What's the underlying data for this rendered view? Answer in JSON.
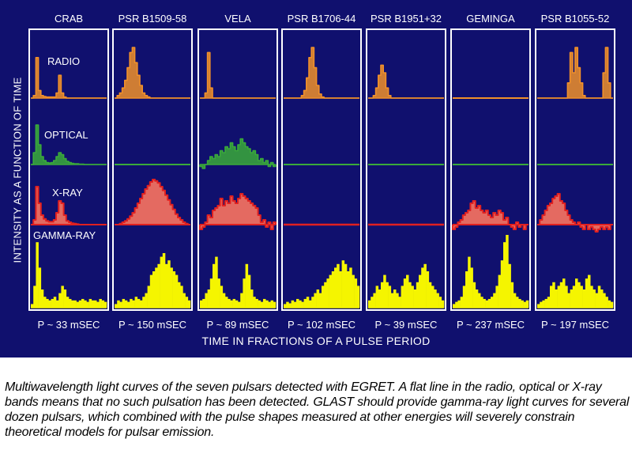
{
  "figure": {
    "ylabel": "INTENSITY AS A FUNCTION OF TIME",
    "xlabel": "TIME IN FRACTIONS OF A PULSE PERIOD",
    "band_labels": [
      "RADIO",
      "OPTICAL",
      "X-RAY",
      "GAMMA-RAY"
    ],
    "caption": "Multiwavelength light curves of the seven pulsars detected with EGRET.  A flat line in the radio, optical or X-ray bands means that no such pulsation has been detected.  GLAST should provide gamma-ray light curves for several dozen pulsars, which combined with the pulse shapes measured at other energies will severely constrain theoretical models for pulsar emission."
  },
  "colors": {
    "background": "#10106e",
    "radio": "#f0902a",
    "optical": "#3aaa3a",
    "xray_line": "#e02020",
    "xray_fill": "#f07060",
    "gamma": "#f5f500",
    "frame": "#ffffff"
  },
  "chart_data": {
    "type": "area",
    "x_unit": "fraction of pulse period",
    "bands": [
      "radio",
      "optical",
      "xray",
      "gamma"
    ],
    "pulsars": [
      {
        "name": "CRAB",
        "period_label": "P ~ 33 mSEC",
        "radio": [
          0,
          0.05,
          0.8,
          0.15,
          0.05,
          0.03,
          0.02,
          0.02,
          0.02,
          0.02,
          0.1,
          0.45,
          0.1,
          0.02,
          0,
          0,
          0,
          0,
          0,
          0,
          0,
          0,
          0,
          0,
          0,
          0,
          0,
          0,
          0,
          0
        ],
        "optical": [
          0,
          0.3,
          1,
          0.5,
          0.2,
          0.1,
          0.05,
          0.04,
          0.05,
          0.1,
          0.2,
          0.3,
          0.25,
          0.15,
          0.08,
          0.05,
          0.03,
          0.02,
          0.02,
          0.01,
          0.01,
          0,
          0,
          0,
          0,
          0,
          0,
          0,
          0,
          0
        ],
        "xray": [
          0,
          0.1,
          0.8,
          0.45,
          0.2,
          0.12,
          0.08,
          0.06,
          0.06,
          0.1,
          0.25,
          0.5,
          0.45,
          0.2,
          0.08,
          0.05,
          0.03,
          0.02,
          0.01,
          0,
          0,
          0,
          0,
          0,
          0,
          0,
          0,
          0,
          0,
          0
        ],
        "gamma": [
          0.05,
          0.3,
          0.9,
          0.55,
          0.25,
          0.15,
          0.12,
          0.1,
          0.12,
          0.15,
          0.1,
          0.2,
          0.3,
          0.25,
          0.15,
          0.12,
          0.1,
          0.1,
          0.08,
          0.1,
          0.12,
          0.1,
          0.08,
          0.12,
          0.1,
          0.1,
          0.08,
          0.12,
          0.1,
          0.08
        ]
      },
      {
        "name": "PSR B1509-58",
        "period_label": "P ~ 150 mSEC",
        "radio": [
          0,
          0.05,
          0.1,
          0.2,
          0.35,
          0.6,
          0.9,
          1,
          0.7,
          0.45,
          0.25,
          0.1,
          0.05,
          0.02,
          0,
          0,
          0,
          0,
          0,
          0,
          0,
          0,
          0,
          0,
          0,
          0,
          0,
          0,
          0,
          0
        ],
        "optical": [],
        "xray": [
          0,
          0,
          0.02,
          0.05,
          0.08,
          0.12,
          0.18,
          0.25,
          0.35,
          0.45,
          0.55,
          0.65,
          0.75,
          0.82,
          0.9,
          0.95,
          0.92,
          0.88,
          0.8,
          0.72,
          0.62,
          0.52,
          0.42,
          0.32,
          0.22,
          0.15,
          0.1,
          0.05,
          0.02,
          0
        ],
        "gamma": [
          0.05,
          0.1,
          0.08,
          0.12,
          0.1,
          0.08,
          0.12,
          0.1,
          0.15,
          0.12,
          0.1,
          0.15,
          0.2,
          0.3,
          0.45,
          0.5,
          0.55,
          0.6,
          0.7,
          0.75,
          0.6,
          0.65,
          0.55,
          0.5,
          0.45,
          0.35,
          0.3,
          0.2,
          0.15,
          0.1
        ]
      },
      {
        "name": "VELA",
        "period_label": "P ~ 89 mSEC",
        "radio": [
          0,
          0,
          0.1,
          0.9,
          0.2,
          0,
          0,
          0,
          0,
          0,
          0,
          0,
          0,
          0,
          0,
          0,
          0,
          0,
          0,
          0,
          0,
          0,
          0,
          0,
          0,
          0,
          0,
          0,
          0,
          0
        ],
        "optical": [
          -0.05,
          -0.1,
          0,
          0.1,
          0.2,
          0.15,
          0.25,
          0.2,
          0.35,
          0.3,
          0.45,
          0.4,
          0.55,
          0.45,
          0.35,
          0.5,
          0.65,
          0.55,
          0.45,
          0.4,
          0.3,
          0.35,
          0.25,
          0.1,
          0.15,
          0.05,
          0.1,
          -0.05,
          0.05,
          -0.05
        ],
        "xray": [
          -0.1,
          -0.05,
          0.05,
          0.2,
          0.15,
          0.3,
          0.35,
          0.4,
          0.55,
          0.4,
          0.5,
          0.45,
          0.6,
          0.5,
          0.45,
          0.55,
          0.65,
          0.6,
          0.55,
          0.5,
          0.45,
          0.4,
          0.35,
          0.2,
          0.05,
          0.1,
          -0.05,
          0.05,
          -0.1,
          0.05
        ],
        "gamma": [
          0.1,
          0.12,
          0.2,
          0.25,
          0.4,
          0.6,
          0.7,
          0.4,
          0.3,
          0.2,
          0.15,
          0.12,
          0.1,
          0.12,
          0.1,
          0.08,
          0.2,
          0.4,
          0.6,
          0.45,
          0.25,
          0.15,
          0.12,
          0.1,
          0.08,
          0.12,
          0.1,
          0.08,
          0.1,
          0.08
        ]
      },
      {
        "name": "PSR B1706-44",
        "period_label": "P ~ 102 mSEC",
        "radio": [
          0,
          0,
          0,
          0,
          0,
          0,
          0,
          0.05,
          0.15,
          0.4,
          0.8,
          1,
          0.6,
          0.25,
          0.08,
          0.02,
          0,
          0,
          0,
          0,
          0,
          0,
          0,
          0,
          0,
          0,
          0,
          0,
          0,
          0
        ],
        "optical": [],
        "xray": [],
        "gamma": [
          0.05,
          0.08,
          0.06,
          0.1,
          0.08,
          0.12,
          0.1,
          0.08,
          0.12,
          0.15,
          0.1,
          0.15,
          0.2,
          0.25,
          0.2,
          0.3,
          0.35,
          0.4,
          0.45,
          0.5,
          0.55,
          0.6,
          0.5,
          0.65,
          0.6,
          0.5,
          0.55,
          0.45,
          0.4,
          0.3
        ]
      },
      {
        "name": "PSR B1951+32",
        "period_label": "P ~ 39 mSEC",
        "radio": [
          0,
          0,
          0.05,
          0.2,
          0.45,
          0.65,
          0.5,
          0.2,
          0.05,
          0,
          0,
          0,
          0,
          0,
          0,
          0,
          0,
          0,
          0,
          0,
          0,
          0,
          0,
          0,
          0,
          0,
          0,
          0,
          0,
          0
        ],
        "optical": [],
        "xray": [],
        "gamma": [
          0.1,
          0.15,
          0.2,
          0.3,
          0.25,
          0.35,
          0.45,
          0.35,
          0.3,
          0.2,
          0.25,
          0.2,
          0.15,
          0.3,
          0.4,
          0.45,
          0.35,
          0.3,
          0.25,
          0.35,
          0.45,
          0.55,
          0.6,
          0.5,
          0.35,
          0.3,
          0.25,
          0.2,
          0.15,
          0.1
        ]
      },
      {
        "name": "GEMINGA",
        "period_label": "P ~  237 mSEC",
        "radio": [],
        "optical": [],
        "xray": [
          -0.1,
          -0.05,
          0.05,
          0.1,
          0.2,
          0.25,
          0.3,
          0.45,
          0.5,
          0.35,
          0.4,
          0.3,
          0.25,
          0.3,
          0.2,
          0.15,
          0.25,
          0.2,
          0.3,
          0.25,
          0.1,
          0.15,
          0,
          -0.05,
          -0.1,
          0.05,
          -0.05,
          0,
          -0.1,
          0
        ],
        "gamma": [
          0.05,
          0.08,
          0.1,
          0.15,
          0.3,
          0.5,
          0.7,
          0.55,
          0.35,
          0.25,
          0.2,
          0.15,
          0.12,
          0.1,
          0.12,
          0.15,
          0.2,
          0.3,
          0.45,
          0.65,
          0.9,
          1,
          0.6,
          0.35,
          0.2,
          0.15,
          0.12,
          0.1,
          0.08,
          0.1
        ]
      },
      {
        "name": "PSR B1055-52",
        "period_label": "P ~ 197 mSEC",
        "radio": [
          0,
          0,
          0,
          0,
          0,
          0,
          0,
          0,
          0,
          0,
          0,
          0,
          0.3,
          0.9,
          0.5,
          1,
          0.6,
          0.3,
          0.05,
          0,
          0,
          0,
          0,
          0,
          0,
          0,
          0.5,
          1,
          0.3,
          0
        ],
        "optical": [],
        "xray": [
          0,
          0.1,
          0.2,
          0.3,
          0.4,
          0.45,
          0.55,
          0.6,
          0.65,
          0.5,
          0.45,
          0.3,
          0.2,
          0.1,
          0.05,
          0,
          0.05,
          -0.05,
          -0.1,
          0,
          -0.1,
          -0.05,
          -0.1,
          -0.15,
          -0.1,
          -0.05,
          -0.1,
          -0.05,
          -0.1,
          0
        ],
        "gamma": [
          0.05,
          0.08,
          0.1,
          0.12,
          0.15,
          0.3,
          0.35,
          0.25,
          0.3,
          0.35,
          0.4,
          0.3,
          0.2,
          0.25,
          0.3,
          0.4,
          0.35,
          0.3,
          0.25,
          0.4,
          0.45,
          0.3,
          0.25,
          0.2,
          0.3,
          0.25,
          0.2,
          0.15,
          0.1,
          0.08
        ]
      }
    ]
  }
}
